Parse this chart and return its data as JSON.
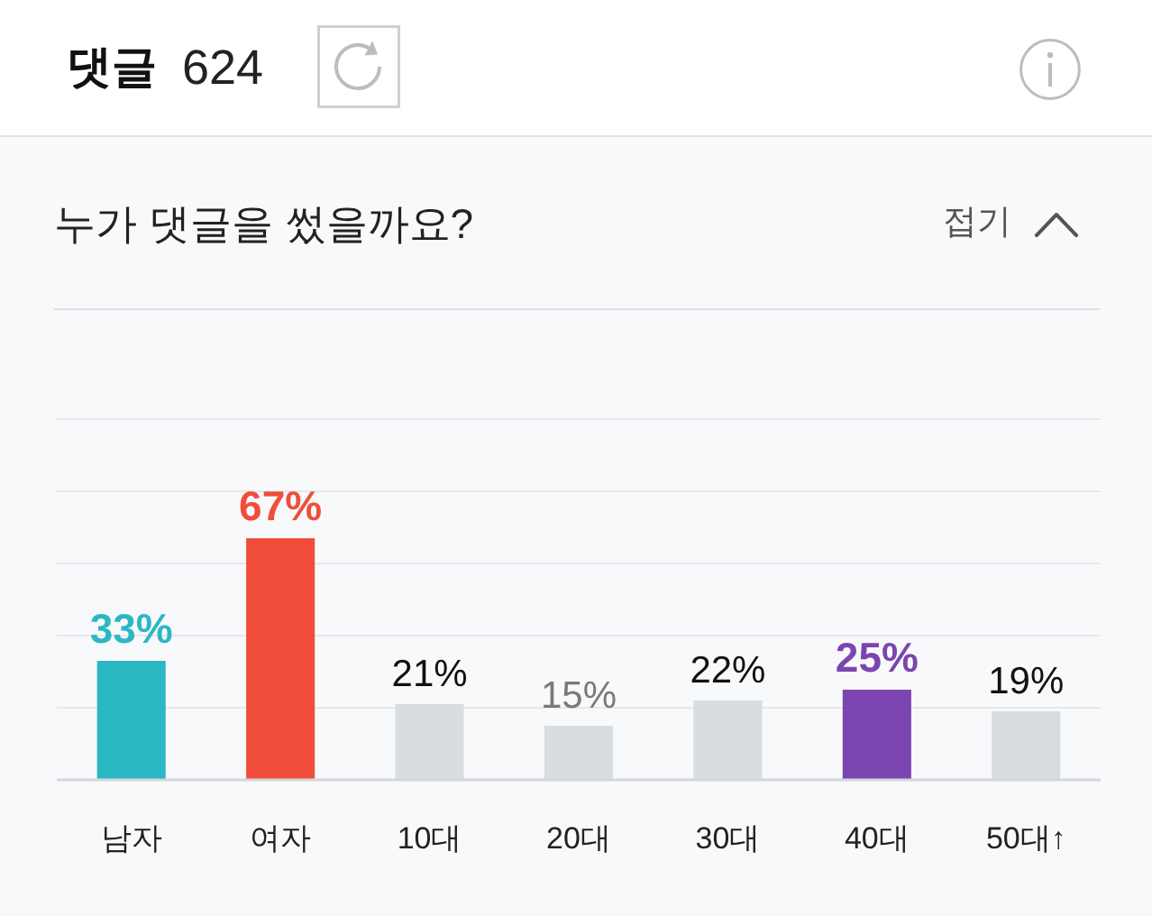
{
  "chart_data": {
    "type": "bar",
    "title": "누가 댓글을 썼을까요?",
    "annotations": [
      "댓글",
      "624",
      "접기"
    ],
    "categories": [
      "남자",
      "여자",
      "10대",
      "20대",
      "30대",
      "40대",
      "50대↑"
    ],
    "values": [
      33,
      67,
      21,
      15,
      22,
      25,
      19
    ],
    "colors": [
      "#2bb8c4",
      "#f04e3a",
      "#d9dde1",
      "#d9dde1",
      "#d9dde1",
      "#7c45b0",
      "#d9dde1"
    ],
    "value_labels": [
      "33%",
      "67%",
      "21%",
      "15%",
      "22%",
      "25%",
      "19%"
    ],
    "yticks": [
      {
        "value": 0,
        "label": null
      },
      {
        "value": 20,
        "label": null
      },
      {
        "value": 40,
        "label": null
      },
      {
        "value": 60,
        "label": null
      },
      {
        "value": 80,
        "label": null
      },
      {
        "value": 100,
        "label": null
      }
    ],
    "grid": "y",
    "tick_labels": "x"
  }
}
